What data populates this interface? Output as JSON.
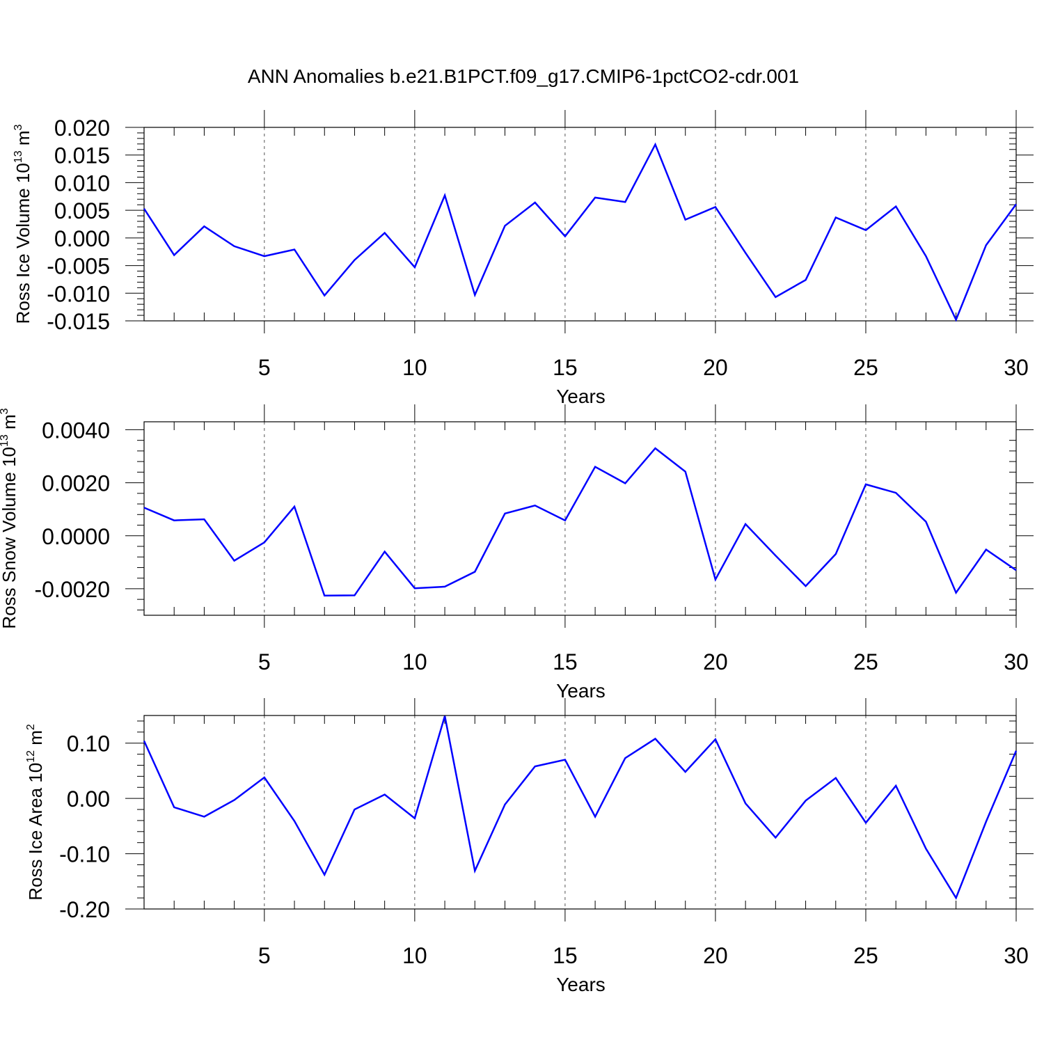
{
  "figure": {
    "title": "ANN Anomalies b.e21.B1PCT.f09_g17.CMIP6-1pctCO2-cdr.001"
  },
  "style": {
    "line_color": "#0000ff",
    "axis_color": "#000000",
    "grid_color": "#555555"
  },
  "chart_data": [
    {
      "type": "line",
      "title": "ANN Anomalies b.e21.B1PCT.f09_g17.CMIP6-1pctCO2-cdr.001",
      "xlabel": "Years",
      "ylabel": "Ross Ice Volume 10",
      "ylabel_sup": "13",
      "ylabel_unit": "m",
      "ylabel_unit_sup": "3",
      "xlim": [
        1,
        30
      ],
      "ylim": [
        -0.015,
        0.02
      ],
      "x_ticks": [
        5,
        10,
        15,
        20,
        25,
        30
      ],
      "y_ticks": [
        -0.015,
        -0.01,
        -0.005,
        0.0,
        0.005,
        0.01,
        0.015,
        0.02
      ],
      "y_tick_labels": [
        "-0.015",
        "-0.010",
        "-0.005",
        "0.000",
        "0.005",
        "0.010",
        "0.015",
        "0.020"
      ],
      "grid": "vertical dashed lines at major x ticks",
      "series": [
        {
          "x": [
            1,
            2,
            3,
            4,
            5,
            6,
            7,
            8,
            9,
            10,
            11,
            12,
            13,
            14,
            15,
            16,
            17,
            18,
            19,
            20,
            21,
            22,
            23,
            24,
            25,
            26,
            27,
            28,
            29,
            30
          ],
          "values": [
            0.0053,
            -0.0031,
            0.0021,
            -0.0015,
            -0.0033,
            -0.0021,
            -0.0104,
            -0.004,
            0.0009,
            -0.0053,
            0.0077,
            -0.0103,
            0.0022,
            0.0064,
            0.0003,
            0.0073,
            0.0065,
            0.0169,
            0.0033,
            0.0056,
            -0.0027,
            -0.0107,
            -0.0076,
            0.0037,
            0.0014,
            0.0057,
            -0.0033,
            -0.0148,
            -0.0013,
            0.0061
          ]
        }
      ]
    },
    {
      "type": "line",
      "xlabel": "Years",
      "ylabel": "Ross Snow Volume 10",
      "ylabel_sup": "13",
      "ylabel_unit": "m",
      "ylabel_unit_sup": "3",
      "xlim": [
        1,
        30
      ],
      "ylim": [
        -0.003,
        0.0043
      ],
      "x_ticks": [
        5,
        10,
        15,
        20,
        25,
        30
      ],
      "y_ticks": [
        -0.002,
        0.0,
        0.002,
        0.004
      ],
      "y_tick_labels": [
        "-0.0020",
        "0.0000",
        "0.0020",
        "0.0040"
      ],
      "grid": "vertical dashed lines at major x ticks",
      "series": [
        {
          "x": [
            1,
            2,
            3,
            4,
            5,
            6,
            7,
            8,
            9,
            10,
            11,
            12,
            13,
            14,
            15,
            16,
            17,
            18,
            19,
            20,
            21,
            22,
            23,
            24,
            25,
            26,
            27,
            28,
            29,
            30
          ],
          "values": [
            0.00106,
            0.00058,
            0.00062,
            -0.00094,
            -0.00025,
            0.0011,
            -0.00226,
            -0.00225,
            -0.0006,
            -0.00198,
            -0.00192,
            -0.00136,
            0.00084,
            0.00114,
            0.00058,
            0.0026,
            0.00198,
            0.0033,
            0.00242,
            -0.00165,
            0.00044,
            -0.00075,
            -0.0019,
            -0.00069,
            0.00194,
            0.00162,
            0.00053,
            -0.00215,
            -0.00052,
            -0.0013
          ]
        }
      ]
    },
    {
      "type": "line",
      "xlabel": "Years",
      "ylabel": "Ross Ice Area 10",
      "ylabel_sup": "12",
      "ylabel_unit": "m",
      "ylabel_unit_sup": "2",
      "xlim": [
        1,
        30
      ],
      "ylim": [
        -0.2,
        0.15
      ],
      "x_ticks": [
        5,
        10,
        15,
        20,
        25,
        30
      ],
      "y_ticks": [
        -0.2,
        -0.1,
        0.0,
        0.1
      ],
      "y_tick_labels": [
        "-0.20",
        "-0.10",
        "0.00",
        "0.10"
      ],
      "grid": "vertical dashed lines at major x ticks",
      "series": [
        {
          "x": [
            1,
            2,
            3,
            4,
            5,
            6,
            7,
            8,
            9,
            10,
            11,
            12,
            13,
            14,
            15,
            16,
            17,
            18,
            19,
            20,
            21,
            22,
            23,
            24,
            25,
            26,
            27,
            28,
            29,
            30
          ],
          "values": [
            0.104,
            -0.016,
            -0.033,
            -0.003,
            0.038,
            -0.041,
            -0.138,
            -0.02,
            0.007,
            -0.036,
            0.149,
            -0.131,
            -0.011,
            0.058,
            0.07,
            -0.033,
            0.073,
            0.108,
            0.048,
            0.107,
            -0.009,
            -0.071,
            -0.004,
            0.037,
            -0.044,
            0.023,
            -0.091,
            -0.18,
            -0.042,
            0.086
          ]
        }
      ]
    }
  ]
}
